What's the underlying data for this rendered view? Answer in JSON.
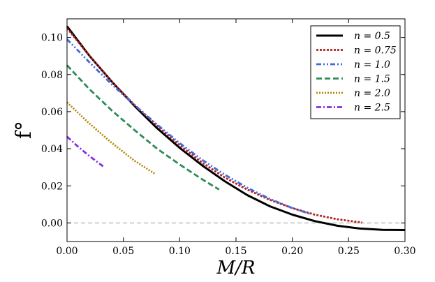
{
  "chart_data": {
    "type": "line",
    "title": "",
    "xlabel": "M/R",
    "ylabel": "f°",
    "xlim": [
      0.0,
      0.3
    ],
    "ylim": [
      -0.01,
      0.11
    ],
    "xticks": [
      0.0,
      0.05,
      0.1,
      0.15,
      0.2,
      0.25,
      0.3
    ],
    "xtick_labels": [
      "0.00",
      "0.05",
      "0.10",
      "0.15",
      "0.20",
      "0.25",
      "0.30"
    ],
    "yticks": [
      0.0,
      0.02,
      0.04,
      0.06,
      0.08,
      0.1
    ],
    "ytick_labels": [
      "0.00",
      "0.02",
      "0.04",
      "0.06",
      "0.08",
      "0.10"
    ],
    "grid": false,
    "legend_position": "top-right",
    "reference_line": {
      "y": 0.0,
      "style": "dashed",
      "color": "#999999"
    },
    "series": [
      {
        "name": "n = 0.5",
        "label_var": "n",
        "label_val": "0.5",
        "color": "#000000",
        "dash": "solid",
        "x": [
          0.0,
          0.02,
          0.04,
          0.06,
          0.08,
          0.1,
          0.12,
          0.14,
          0.16,
          0.18,
          0.2,
          0.22,
          0.24,
          0.26,
          0.28,
          0.3
        ],
        "y": [
          0.106,
          0.09,
          0.076,
          0.063,
          0.051,
          0.0405,
          0.031,
          0.0225,
          0.015,
          0.009,
          0.0045,
          0.001,
          -0.0015,
          -0.003,
          -0.0037,
          -0.0038
        ]
      },
      {
        "name": "n = 0.75",
        "label_var": "n",
        "label_val": "0.75",
        "color": "#b22222",
        "dash": "dotted",
        "x": [
          0.0,
          0.02,
          0.04,
          0.06,
          0.08,
          0.1,
          0.12,
          0.14,
          0.16,
          0.18,
          0.2,
          0.22,
          0.24,
          0.262
        ],
        "y": [
          0.105,
          0.09,
          0.076,
          0.0635,
          0.0525,
          0.042,
          0.0325,
          0.0245,
          0.018,
          0.0125,
          0.008,
          0.0045,
          0.002,
          0.0002
        ]
      },
      {
        "name": "n = 1.0",
        "label_var": "n",
        "label_val": "1.0",
        "color": "#4169e1",
        "dash": "dashdotdot",
        "x": [
          0.0,
          0.02,
          0.04,
          0.06,
          0.08,
          0.1,
          0.12,
          0.14,
          0.16,
          0.18,
          0.2,
          0.215
        ],
        "y": [
          0.099,
          0.0865,
          0.0745,
          0.0635,
          0.053,
          0.043,
          0.034,
          0.026,
          0.019,
          0.013,
          0.008,
          0.005
        ]
      },
      {
        "name": "n = 1.5",
        "label_var": "n",
        "label_val": "1.5",
        "color": "#2e8b57",
        "dash": "dashed",
        "x": [
          0.0,
          0.02,
          0.04,
          0.06,
          0.08,
          0.1,
          0.12,
          0.135
        ],
        "y": [
          0.085,
          0.072,
          0.0605,
          0.05,
          0.04,
          0.0315,
          0.0235,
          0.018
        ]
      },
      {
        "name": "n = 2.0",
        "label_var": "n",
        "label_val": "2.0",
        "color": "#b8860b",
        "dash": "densedot",
        "x": [
          0.0,
          0.02,
          0.04,
          0.06,
          0.078
        ],
        "y": [
          0.065,
          0.0535,
          0.043,
          0.0335,
          0.0265
        ]
      },
      {
        "name": "n = 2.5",
        "label_var": "n",
        "label_val": "2.5",
        "color": "#8a2be2",
        "dash": "dashdot",
        "x": [
          0.0,
          0.01,
          0.02,
          0.032
        ],
        "y": [
          0.0465,
          0.041,
          0.036,
          0.0305
        ]
      }
    ]
  }
}
